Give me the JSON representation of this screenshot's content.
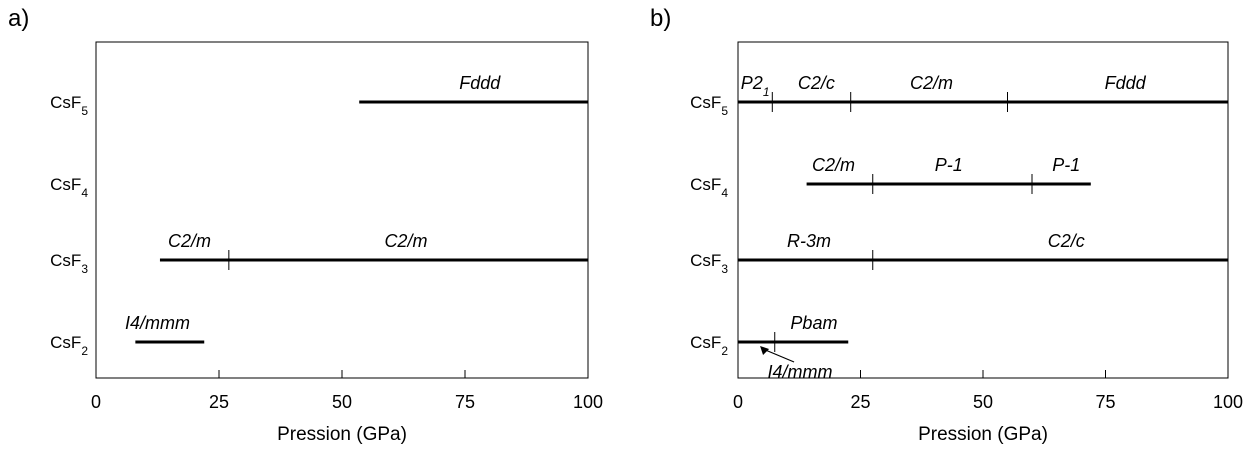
{
  "chart_data": [
    {
      "type": "range",
      "panel_label": "a)",
      "xlabel": "Pression (GPa)",
      "xlim": [
        0,
        100
      ],
      "xticks": [
        0,
        25,
        50,
        75,
        100
      ],
      "categories": [
        {
          "formula": "CsF",
          "sub": "5"
        },
        {
          "formula": "CsF",
          "sub": "4"
        },
        {
          "formula": "CsF",
          "sub": "3"
        },
        {
          "formula": "CsF",
          "sub": "2"
        }
      ],
      "series": [
        {
          "category": 0,
          "start": 53.5,
          "end": 100,
          "boundaries": [],
          "labels": [
            {
              "text": "Fddd",
              "x": 78
            }
          ]
        },
        {
          "category": 2,
          "start": 13,
          "end": 100,
          "boundaries": [
            27
          ],
          "labels": [
            {
              "text": "C2/m",
              "x": 19
            },
            {
              "text": "C2/m",
              "x": 63
            }
          ]
        },
        {
          "category": 3,
          "start": 8,
          "end": 22,
          "boundaries": [],
          "labels": [
            {
              "text": "I4/mmm",
              "x": 12.5
            }
          ]
        }
      ]
    },
    {
      "type": "range",
      "panel_label": "b)",
      "xlabel": "Pression (GPa)",
      "xlim": [
        0,
        100
      ],
      "xticks": [
        0,
        25,
        50,
        75,
        100
      ],
      "categories": [
        {
          "formula": "CsF",
          "sub": "5"
        },
        {
          "formula": "CsF",
          "sub": "4"
        },
        {
          "formula": "CsF",
          "sub": "3"
        },
        {
          "formula": "CsF",
          "sub": "2"
        }
      ],
      "series": [
        {
          "category": 0,
          "start": 0,
          "end": 100,
          "boundaries": [
            7,
            23,
            55
          ],
          "labels": [
            {
              "text": "P2₁",
              "x": 3.5
            },
            {
              "text": "C2/c",
              "x": 16
            },
            {
              "text": "C2/m",
              "x": 39.5
            },
            {
              "text": "Fddd",
              "x": 79
            }
          ]
        },
        {
          "category": 1,
          "start": 14,
          "end": 72,
          "boundaries": [
            27.5,
            60
          ],
          "labels": [
            {
              "text": "C2/m",
              "x": 19.5
            },
            {
              "text": "P-1",
              "x": 43
            },
            {
              "text": "P-1",
              "x": 67
            }
          ]
        },
        {
          "category": 2,
          "start": 0,
          "end": 100,
          "boundaries": [
            27.5
          ],
          "labels": [
            {
              "text": "R-3m",
              "x": 14.5
            },
            {
              "text": "C2/c",
              "x": 67
            }
          ]
        },
        {
          "category": 3,
          "start": 0,
          "end": 22.5,
          "boundaries": [
            7.5
          ],
          "labels": [
            {
              "text": "Pbam",
              "x": 15.5
            }
          ]
        }
      ],
      "annotations": [
        {
          "text": "I4/mmm",
          "arrow_to_x": 4.5,
          "category": 3
        }
      ]
    }
  ]
}
